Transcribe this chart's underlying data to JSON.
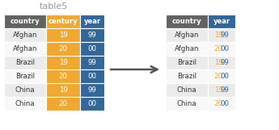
{
  "title": "table5",
  "title_color": "#999999",
  "left_table": {
    "headers": [
      "country",
      "century",
      "year"
    ],
    "header_colors": [
      "#636363",
      "#f0a830",
      "#336699"
    ],
    "header_text_color": "#ffffff",
    "rows": [
      [
        "Afghan",
        "19",
        "99"
      ],
      [
        "Afghan",
        "20",
        "00"
      ],
      [
        "Brazil",
        "19",
        "99"
      ],
      [
        "Brazil",
        "20",
        "00"
      ],
      [
        "China",
        "19",
        "99"
      ],
      [
        "China",
        "20",
        "00"
      ]
    ],
    "row_bg_even": "#ebebeb",
    "row_bg_odd": "#f8f8f8",
    "century_color": "#f0a830",
    "year_bg_color": "#336699",
    "year_text_color": "#ffffff",
    "country_text_color": "#333333"
  },
  "right_table": {
    "headers": [
      "country",
      "year"
    ],
    "header_colors": [
      "#636363",
      "#336699"
    ],
    "header_text_color": "#ffffff",
    "rows": [
      [
        "Afghan",
        "1999"
      ],
      [
        "Afghan",
        "2000"
      ],
      [
        "Brazil",
        "1999"
      ],
      [
        "Brazil",
        "2000"
      ],
      [
        "China",
        "1999"
      ],
      [
        "China",
        "2000"
      ]
    ],
    "row_bg_even": "#ebebeb",
    "row_bg_odd": "#f8f8f8",
    "century_text_color": "#f0a830",
    "year_text_color": "#336699",
    "country_text_color": "#333333"
  },
  "arrow_color": "#555555",
  "bg_color": "#ffffff",
  "figsize": [
    3.45,
    1.61
  ],
  "dpi": 100
}
